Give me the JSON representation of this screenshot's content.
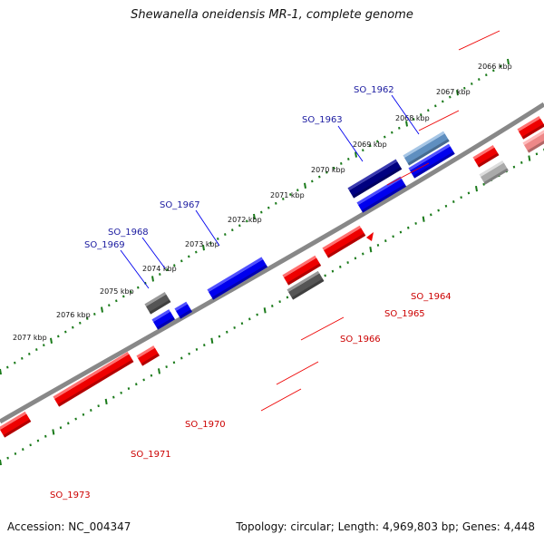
{
  "title": "Shewanella oneidensis MR-1, complete genome",
  "accession": "Accession: NC_004347",
  "summary": "Topology: circular; Length: 4,969,803 bp; Genes: 4,448",
  "colors": {
    "forward": "#0000ee",
    "reverse": "#ee0000",
    "forward_label": "#1a1aa0",
    "reverse_label": "#cc0000",
    "backbone": "#888888",
    "ticks": "#1a7a1a"
  },
  "kbp_labels": [
    "2066 kbp",
    "2067 kbp",
    "2068 kbp",
    "2069 kbp",
    "2070 kbp",
    "2071 kbp",
    "2072 kbp",
    "2073 kbp",
    "2074 kbp",
    "2075 kbp",
    "2076 kbp",
    "2077 kbp"
  ],
  "forward_genes": [
    "SO_1962",
    "SO_1963",
    "SO_1967",
    "SO_1968",
    "SO_1969"
  ],
  "reverse_genes": [
    "SO_1964",
    "SO_1965",
    "SO_1966",
    "SO_1970",
    "SO_1971",
    "SO_1973"
  ]
}
